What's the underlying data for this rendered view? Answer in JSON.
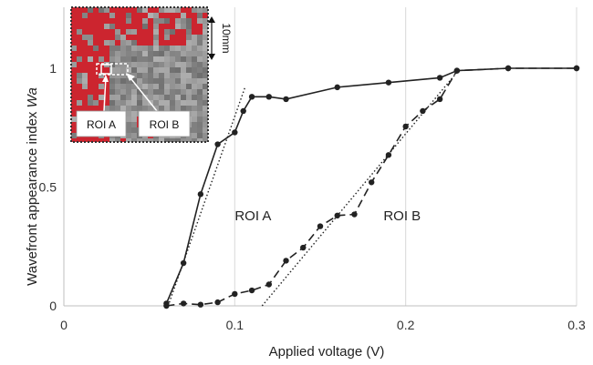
{
  "chart_data": {
    "type": "line",
    "xlabel": "Applied voltage (V)",
    "ylabel_main": "Wavefront appearance index ",
    "ylabel_var": "Wa",
    "xlim": [
      0,
      0.3
    ],
    "ylim": [
      0,
      1.05
    ],
    "xticks": [
      "0",
      "0.1",
      "0.2",
      "0.3"
    ],
    "yticks": [
      "0",
      "0.5",
      "1"
    ],
    "grid": "vertical",
    "series": [
      {
        "name": "ROI A",
        "style": "solid",
        "color": "#222222",
        "x": [
          0.06,
          0.07,
          0.08,
          0.09,
          0.1,
          0.105,
          0.11,
          0.12,
          0.13,
          0.16,
          0.19,
          0.22,
          0.23,
          0.26,
          0.3
        ],
        "y": [
          0.01,
          0.18,
          0.47,
          0.68,
          0.73,
          0.82,
          0.88,
          0.88,
          0.87,
          0.92,
          0.94,
          0.96,
          0.99,
          1.0,
          1.0
        ]
      },
      {
        "name": "ROI B",
        "style": "dashed",
        "color": "#222222",
        "x": [
          0.06,
          0.07,
          0.08,
          0.09,
          0.1,
          0.11,
          0.12,
          0.13,
          0.14,
          0.15,
          0.16,
          0.17,
          0.18,
          0.19,
          0.2,
          0.21,
          0.22,
          0.23,
          0.26,
          0.3
        ],
        "y": [
          0.0,
          0.01,
          0.005,
          0.015,
          0.05,
          0.065,
          0.09,
          0.19,
          0.245,
          0.335,
          0.38,
          0.385,
          0.52,
          0.635,
          0.755,
          0.82,
          0.87,
          0.99,
          1.0,
          1.0
        ]
      }
    ],
    "fit_lines": [
      {
        "name": "ROI A fit",
        "x": [
          0.061,
          0.106
        ],
        "y": [
          0.0,
          0.92
        ]
      },
      {
        "name": "ROI B fit",
        "x": [
          0.116,
          0.232
        ],
        "y": [
          0.0,
          1.0
        ]
      }
    ],
    "annotations": [
      {
        "text": "ROI A",
        "x": 0.1,
        "y": 0.36
      },
      {
        "text": "ROI B",
        "x": 0.187,
        "y": 0.36
      }
    ],
    "inset": {
      "scale_label": "10mm",
      "roi_a_label": "ROI A",
      "roi_b_label": "ROI B",
      "colors": {
        "gray": "#9a9a9a",
        "red": "#d0202a"
      }
    }
  }
}
